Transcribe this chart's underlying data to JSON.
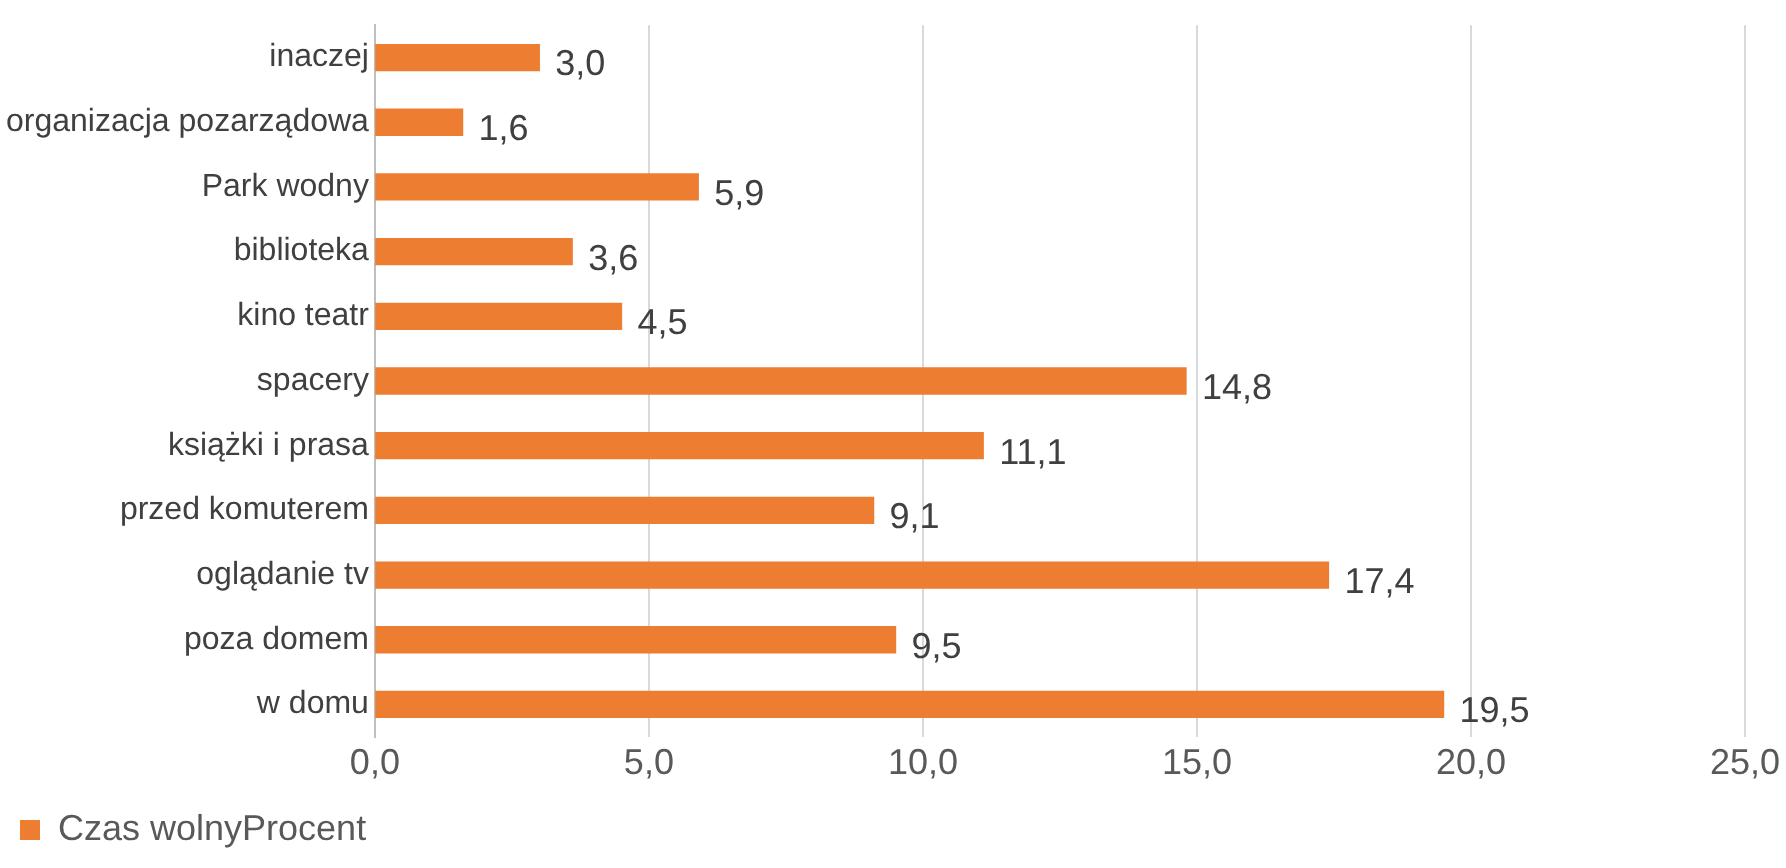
{
  "chart_data": {
    "type": "bar",
    "orientation": "horizontal",
    "categories": [
      "inaczej",
      "organizacja pozarządowa",
      "Park wodny",
      "biblioteka",
      "kino teatr",
      "spacery",
      "książki i prasa",
      "przed komuterem",
      "oglądanie tv",
      "poza domem",
      "w domu"
    ],
    "series": [
      {
        "name": "Czas wolnyProcent",
        "color": "#ed7d31",
        "values": [
          3.0,
          1.6,
          5.9,
          3.6,
          4.5,
          14.8,
          11.1,
          9.1,
          17.4,
          9.5,
          19.5
        ],
        "value_labels": [
          "3,0",
          "1,6",
          "5,9",
          "3,6",
          "4,5",
          "14,8",
          "11,1",
          "9,1",
          "17,4",
          "9,5",
          "19,5"
        ]
      }
    ],
    "xlim": [
      0,
      25
    ],
    "xticks": [
      {
        "value": 0,
        "label": "0,0"
      },
      {
        "value": 5,
        "label": "5,0"
      },
      {
        "value": 10,
        "label": "10,0"
      },
      {
        "value": 15,
        "label": "15,0"
      },
      {
        "value": 20,
        "label": "20,0"
      },
      {
        "value": 25,
        "label": "25,0"
      }
    ],
    "grid": "x",
    "legend": "bottom left"
  }
}
